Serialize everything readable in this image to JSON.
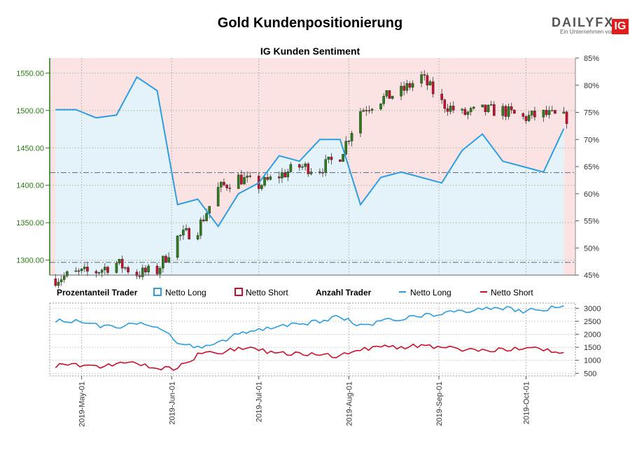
{
  "header": {
    "title": "Gold Kundenpositionierung",
    "logo": {
      "brand": "DAILYFX",
      "sub": "Ein Unternehmen von",
      "ig": "IG"
    }
  },
  "chart_data": [
    {
      "type": "candlestick",
      "title": "IG Kunden Sentiment",
      "y_left_ticks": [
        "1300.00",
        "1350.00",
        "1400.00",
        "1450.00",
        "1500.00",
        "1550.00"
      ],
      "y_right_ticks": [
        "45%",
        "50%",
        "55%",
        "60%",
        "65%",
        "70%",
        "75%",
        "80%",
        "85%"
      ],
      "ylim_price": [
        1280,
        1570
      ],
      "ylim_percent": [
        45,
        85
      ],
      "reference_lines": [
        1297,
        1417
      ],
      "x_ticks": [
        "2019-May-01",
        "2019-Jun-01",
        "2019-Jul-01",
        "2019-Aug-01",
        "2019-Sep-01",
        "2019-Oct-01"
      ],
      "price_series": [
        {
          "date": "2019-04-22",
          "close": 1275
        },
        {
          "date": "2019-04-29",
          "close": 1282
        },
        {
          "date": "2019-05-06",
          "close": 1285
        },
        {
          "date": "2019-05-13",
          "close": 1296
        },
        {
          "date": "2019-05-20",
          "close": 1282
        },
        {
          "date": "2019-05-27",
          "close": 1286
        },
        {
          "date": "2019-06-03",
          "close": 1330
        },
        {
          "date": "2019-06-10",
          "close": 1342
        },
        {
          "date": "2019-06-17",
          "close": 1395
        },
        {
          "date": "2019-06-24",
          "close": 1410
        },
        {
          "date": "2019-07-01",
          "close": 1400
        },
        {
          "date": "2019-07-08",
          "close": 1413
        },
        {
          "date": "2019-07-15",
          "close": 1425
        },
        {
          "date": "2019-07-22",
          "close": 1422
        },
        {
          "date": "2019-07-29",
          "close": 1440
        },
        {
          "date": "2019-08-05",
          "close": 1500
        },
        {
          "date": "2019-08-12",
          "close": 1515
        },
        {
          "date": "2019-08-19",
          "close": 1525
        },
        {
          "date": "2019-08-26",
          "close": 1545
        },
        {
          "date": "2019-09-02",
          "close": 1510
        },
        {
          "date": "2019-09-09",
          "close": 1495
        },
        {
          "date": "2019-09-16",
          "close": 1500
        },
        {
          "date": "2019-09-23",
          "close": 1500
        },
        {
          "date": "2019-09-30",
          "close": 1490
        },
        {
          "date": "2019-10-07",
          "close": 1495
        },
        {
          "date": "2019-10-14",
          "close": 1490
        }
      ],
      "net_long_pct_series": [
        {
          "date": "2019-04-22",
          "value": 75.5
        },
        {
          "date": "2019-04-29",
          "value": 75.5
        },
        {
          "date": "2019-05-06",
          "value": 74
        },
        {
          "date": "2019-05-13",
          "value": 74.5
        },
        {
          "date": "2019-05-20",
          "value": 81.5
        },
        {
          "date": "2019-05-27",
          "value": 79
        },
        {
          "date": "2019-06-03",
          "value": 58
        },
        {
          "date": "2019-06-10",
          "value": 59
        },
        {
          "date": "2019-06-17",
          "value": 54
        },
        {
          "date": "2019-06-24",
          "value": 60
        },
        {
          "date": "2019-07-01",
          "value": 62
        },
        {
          "date": "2019-07-08",
          "value": 67
        },
        {
          "date": "2019-07-15",
          "value": 66
        },
        {
          "date": "2019-07-22",
          "value": 70
        },
        {
          "date": "2019-07-29",
          "value": 70
        },
        {
          "date": "2019-08-05",
          "value": 58
        },
        {
          "date": "2019-08-12",
          "value": 63
        },
        {
          "date": "2019-08-19",
          "value": 64
        },
        {
          "date": "2019-08-26",
          "value": 63
        },
        {
          "date": "2019-09-02",
          "value": 62
        },
        {
          "date": "2019-09-09",
          "value": 68
        },
        {
          "date": "2019-09-16",
          "value": 71
        },
        {
          "date": "2019-09-23",
          "value": 66
        },
        {
          "date": "2019-09-30",
          "value": 65
        },
        {
          "date": "2019-10-07",
          "value": 64
        },
        {
          "date": "2019-10-14",
          "value": 72
        }
      ]
    },
    {
      "type": "line",
      "y_ticks": [
        "500",
        "1000",
        "1500",
        "2000",
        "2500",
        "3000"
      ],
      "ylim": [
        400,
        3200
      ],
      "series": [
        {
          "name": "Netto Long",
          "color": "#2e9ee0",
          "values": [
            2550,
            2500,
            2350,
            2300,
            2400,
            2300,
            1700,
            1500,
            1700,
            2000,
            2200,
            2300,
            2400,
            2500,
            2700,
            2300,
            2500,
            2600,
            2700,
            2800,
            2900,
            3000,
            3000,
            2900,
            2950,
            3100
          ]
        },
        {
          "name": "Netto Short",
          "color": "#c8102e",
          "values": [
            800,
            850,
            750,
            850,
            900,
            650,
            700,
            1200,
            1300,
            1450,
            1400,
            1250,
            1300,
            1200,
            1150,
            1400,
            1550,
            1500,
            1600,
            1500,
            1400,
            1350,
            1400,
            1500,
            1450,
            1300
          ]
        }
      ]
    }
  ],
  "legend": {
    "group1_title": "Prozentanteil Trader",
    "group1_long": "Netto Long",
    "group1_short": "Netto Short",
    "group2_title": "Anzahl Trader",
    "group2_long": "Netto Long",
    "group2_short": "Netto Short"
  },
  "colors": {
    "long": "#2e9ee0",
    "short": "#c8102e",
    "long_fill": "#e4f3fa",
    "short_fill": "#fbe3e3",
    "axis_green": "#2a7a14",
    "candle_up": "#2e7d1b",
    "candle_down": "#c8102e"
  }
}
